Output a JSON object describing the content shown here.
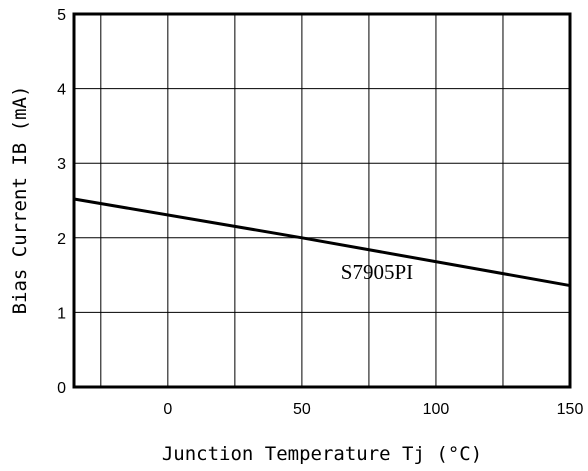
{
  "chart_data": {
    "type": "line",
    "title": "",
    "xlabel": "Junction Temperature Tj (°C)",
    "ylabel": "Bias Current IB (mA)",
    "xlim": [
      -35,
      150
    ],
    "ylim": [
      0,
      5
    ],
    "xticks": [
      0,
      50,
      100,
      150
    ],
    "yticks": [
      0,
      1,
      2,
      3,
      4,
      5
    ],
    "x_gridlines": [
      -25,
      0,
      25,
      50,
      75,
      100,
      125
    ],
    "grid": true,
    "series": [
      {
        "name": "S7905PI",
        "x": [
          -35,
          50,
          150
        ],
        "y": [
          2.52,
          2.0,
          1.36
        ]
      }
    ]
  }
}
